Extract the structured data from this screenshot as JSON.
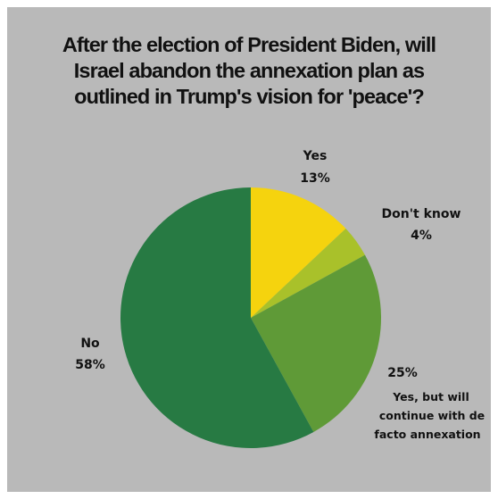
{
  "chart_data": {
    "type": "pie",
    "title_lines": [
      "After the election of President Biden, will",
      "Israel abandon the annexation plan as",
      "outlined in Trump's vision for 'peace'?"
    ],
    "slices": [
      {
        "label": "Yes",
        "value": 13,
        "value_label": "13%",
        "color": "#f5d30e"
      },
      {
        "label": "Don't know",
        "value": 4,
        "value_label": "4%",
        "color": "#a9c12a"
      },
      {
        "label_lines": [
          "Yes, but will",
          "continue with de",
          "facto annexation"
        ],
        "value": 25,
        "value_label": "25%",
        "color": "#5f9a37"
      },
      {
        "label": "No",
        "value": 58,
        "value_label": "58%",
        "color": "#277a43"
      }
    ],
    "background": "#b9b9b9"
  }
}
